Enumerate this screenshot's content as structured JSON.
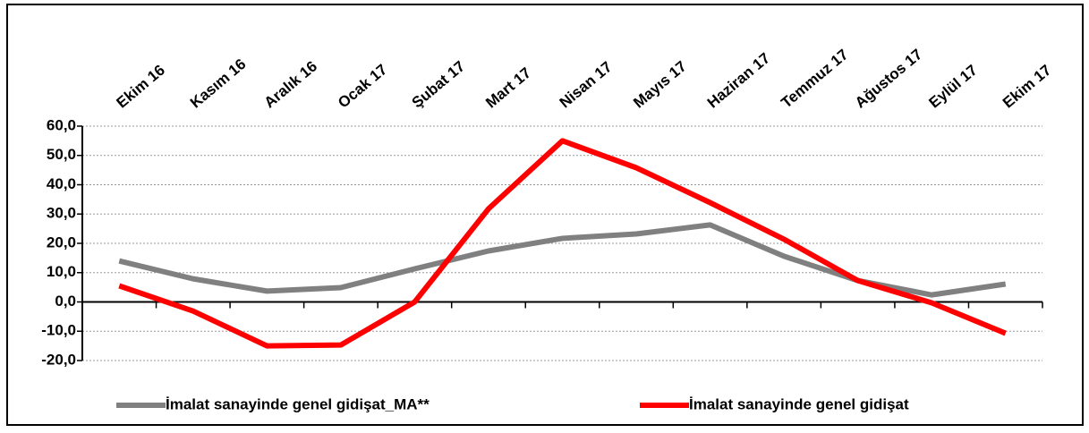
{
  "chart_data": {
    "type": "line",
    "categories": [
      "Ekim 16",
      "Kasım 16",
      "Aralık 16",
      "Ocak 17",
      "Şubat 17",
      "Mart 17",
      "Nisan 17",
      "Mayıs 17",
      "Haziran 17",
      "Temmuz 17",
      "Ağustos 17",
      "Eylül 17",
      "Ekim 17"
    ],
    "series": [
      {
        "name": "İmalat sanayinde genel gidişat_MA**",
        "color": "#808080",
        "values": [
          14.0,
          7.9,
          3.7,
          4.9,
          11.3,
          17.4,
          21.7,
          23.2,
          26.3,
          15.6,
          7.3,
          2.4,
          6.1
        ]
      },
      {
        "name": "İmalat sanayinde genel gidişat",
        "color": "#ff0000",
        "values": [
          5.5,
          -3.1,
          -15.0,
          -14.7,
          0.0,
          31.8,
          55.0,
          45.8,
          33.9,
          21.4,
          7.3,
          -0.3,
          -10.7
        ]
      }
    ],
    "ylim": [
      -20,
      60
    ],
    "yticks": [
      {
        "value": -20,
        "label": "-20,0"
      },
      {
        "value": -10,
        "label": "-10,0"
      },
      {
        "value": 0,
        "label": "0,0"
      },
      {
        "value": 10,
        "label": "10,0"
      },
      {
        "value": 20,
        "label": "20,0"
      },
      {
        "value": 30,
        "label": "30,0"
      },
      {
        "value": 40,
        "label": "40,0"
      },
      {
        "value": 50,
        "label": "50,0"
      },
      {
        "value": 60,
        "label": "60,0"
      }
    ],
    "grid": true,
    "legend": "bottom"
  }
}
